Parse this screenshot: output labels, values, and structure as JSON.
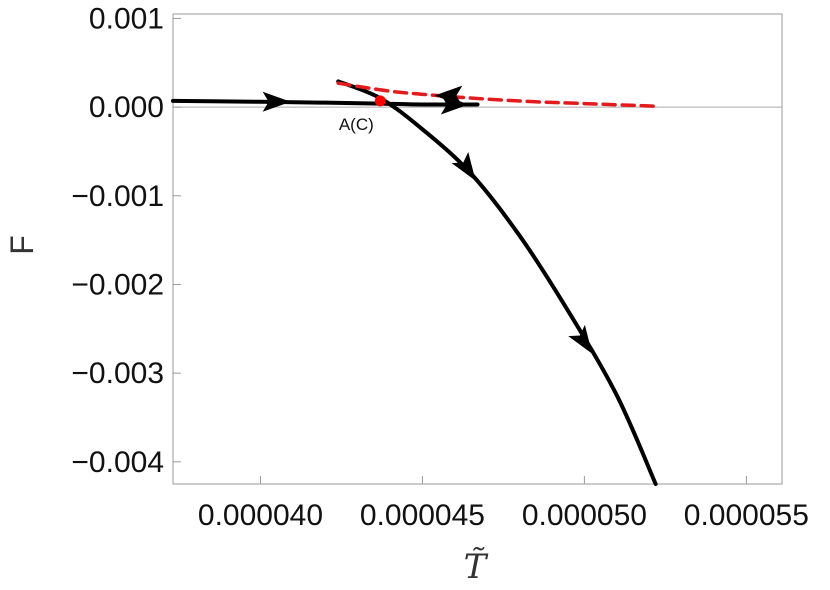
{
  "chart_data": {
    "type": "line",
    "title": "",
    "xlabel": "T̃",
    "ylabel": "F",
    "xlim": [
      3.73e-05,
      5.61e-05
    ],
    "ylim": [
      -0.00425,
      0.00105
    ],
    "x_ticks": [
      {
        "value": 4e-05,
        "label": "0.000040"
      },
      {
        "value": 4.5e-05,
        "label": "0.000045"
      },
      {
        "value": 5e-05,
        "label": "0.000050"
      },
      {
        "value": 5.5e-05,
        "label": "0.000055"
      }
    ],
    "y_ticks": [
      {
        "value": 0.001,
        "label": "0.001"
      },
      {
        "value": 0,
        "label": "0.000"
      },
      {
        "value": -0.001,
        "label": "−0.001"
      },
      {
        "value": -0.002,
        "label": "−0.002"
      },
      {
        "value": -0.003,
        "label": "−0.003"
      },
      {
        "value": -0.004,
        "label": "−0.004"
      }
    ],
    "series": [
      {
        "style": "solid",
        "color": "#000000",
        "x": [
          3.73e-05,
          4e-05,
          4.2e-05,
          4.37e-05,
          4.5e-05,
          4.67e-05
        ],
        "y": [
          7e-05,
          6e-05,
          5e-05,
          4e-05,
          3e-05,
          3e-05
        ]
      },
      {
        "style": "solid",
        "color": "#000000",
        "x": [
          4.24e-05,
          4.37e-05,
          4.5e-05,
          4.65e-05,
          4.8e-05,
          4.95e-05,
          5.1e-05,
          5.22e-05
        ],
        "y": [
          0.00029,
          0.0001,
          -0.00025,
          -0.00075,
          -0.00145,
          -0.0023,
          -0.00325,
          -0.00425
        ]
      },
      {
        "style": "dashed",
        "color": "#e41a1c",
        "x": [
          4.24e-05,
          4.4e-05,
          4.55e-05,
          4.7e-05,
          4.85e-05,
          5e-05,
          5.22e-05
        ],
        "y": [
          0.00027,
          0.00018,
          0.00013,
          9e-05,
          6e-05,
          4e-05,
          1e-05
        ]
      }
    ],
    "arrows": [
      {
        "x": 4.05e-05,
        "y": 6e-05,
        "direction": "right"
      },
      {
        "x": 4.6e-05,
        "y": 3e-05,
        "direction": "right"
      },
      {
        "x": 4.58e-05,
        "y": 0.00013,
        "direction": "left"
      },
      {
        "x": 4.64e-05,
        "y": -0.0007,
        "direction": "down-right"
      },
      {
        "x": 5e-05,
        "y": -0.00265,
        "direction": "down-right"
      }
    ],
    "points": [
      {
        "x": 4.37e-05,
        "y": 7e-05,
        "label": "A(C)",
        "color": "#ff0000"
      }
    ],
    "grid": false,
    "legend": "none"
  }
}
